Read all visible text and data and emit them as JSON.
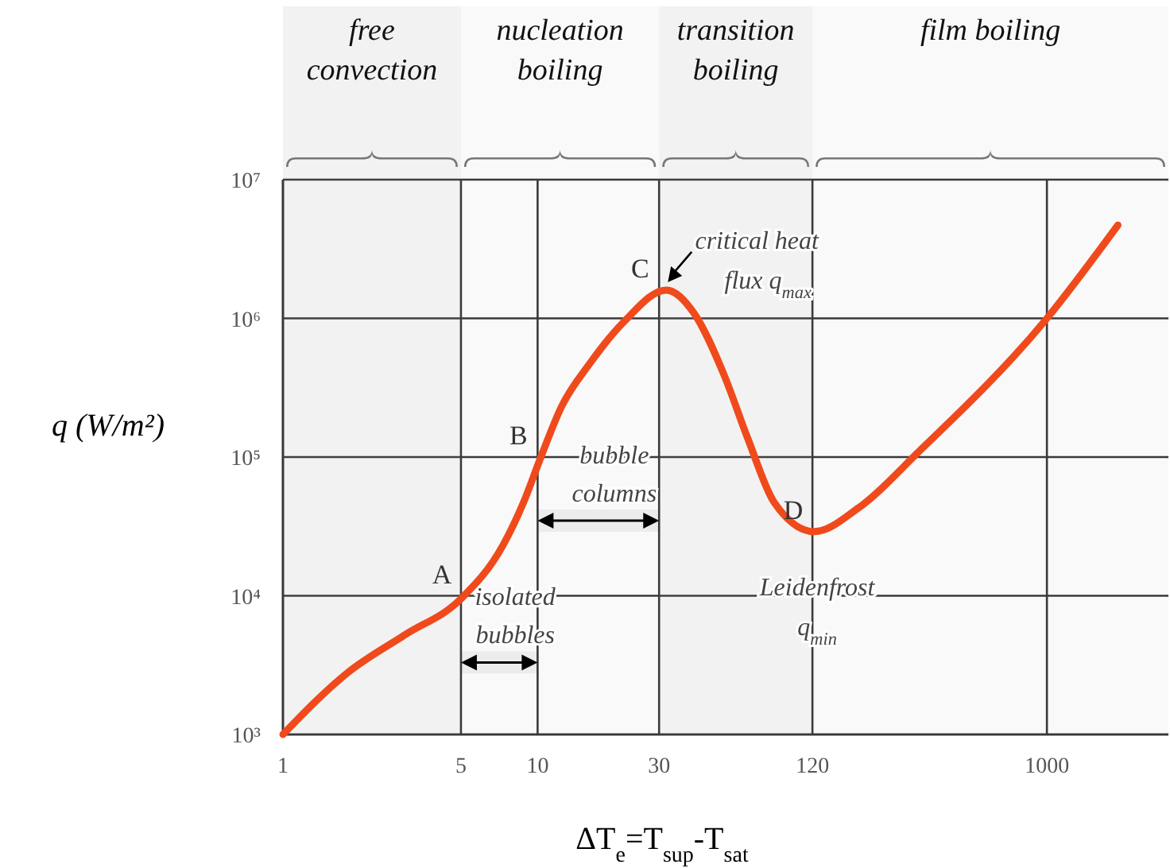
{
  "chart_data": {
    "type": "line",
    "xlabel": "ΔT$_{e}$=T$_{sup}$-T$_{sat}$",
    "ylabel": "q (W/m²)",
    "log": "xy",
    "grid": true,
    "marker": "none",
    "line_style": "solid",
    "xlim": [
      1,
      3000
    ],
    "xticks": [
      1,
      5,
      10,
      30,
      120,
      1000
    ],
    "ylim": [
      1000,
      10000000
    ],
    "yticks": [
      {
        "value": 1000,
        "label": "10³"
      },
      {
        "value": 10000,
        "label": "10⁴"
      },
      {
        "value": 100000,
        "label": "10⁵"
      },
      {
        "value": 1000000,
        "label": "10⁶"
      },
      {
        "value": 10000000,
        "label": "10⁷"
      }
    ],
    "series": [
      {
        "color": "#f04a1c",
        "x": [
          1,
          1.8,
          3,
          5,
          7.3,
          8.8,
          10.3,
          12.4,
          16,
          22,
          32,
          41,
          54,
          67,
          85,
          122,
          182,
          315,
          1000,
          1900
        ],
        "values": [
          1000,
          2800,
          5200,
          9500,
          23000,
          47000,
          100000,
          230000,
          470000,
          960000,
          1600000,
          1100000,
          390000,
          135000,
          47000,
          29000,
          43000,
          110000,
          1000000,
          4700000
        ]
      }
    ],
    "bands": [
      {
        "axis": "x",
        "from": 1,
        "to": 5,
        "label": "free convection"
      },
      {
        "axis": "x",
        "from": 5,
        "to": 30,
        "label": "nucleation boiling"
      },
      {
        "axis": "x",
        "from": 30,
        "to": 120,
        "label": "transition boiling"
      },
      {
        "axis": "x",
        "from": 120,
        "to": 3000,
        "label": "film boiling"
      },
      {
        "axis": "x",
        "from": 10,
        "to": 30,
        "label": "bubble columns",
        "color": "#000000"
      },
      {
        "axis": "x",
        "from": 5,
        "to": 10,
        "label": "isolated bubbles",
        "color": "#000000"
      }
    ],
    "annotations": [
      {
        "text": "A",
        "x": 5,
        "y": 10000
      },
      {
        "text": "B",
        "x": 10,
        "y": 100000
      },
      {
        "text": "C",
        "x": 30,
        "y": 1600000
      },
      {
        "text": "D",
        "x": 120,
        "y": 29000
      },
      {
        "text": "critical heat flux q$_{max}$",
        "x": 32,
        "y": 1600000
      },
      {
        "text": "Leidenfrost q$_{min}$",
        "x": 120,
        "y": 29000
      }
    ]
  }
}
